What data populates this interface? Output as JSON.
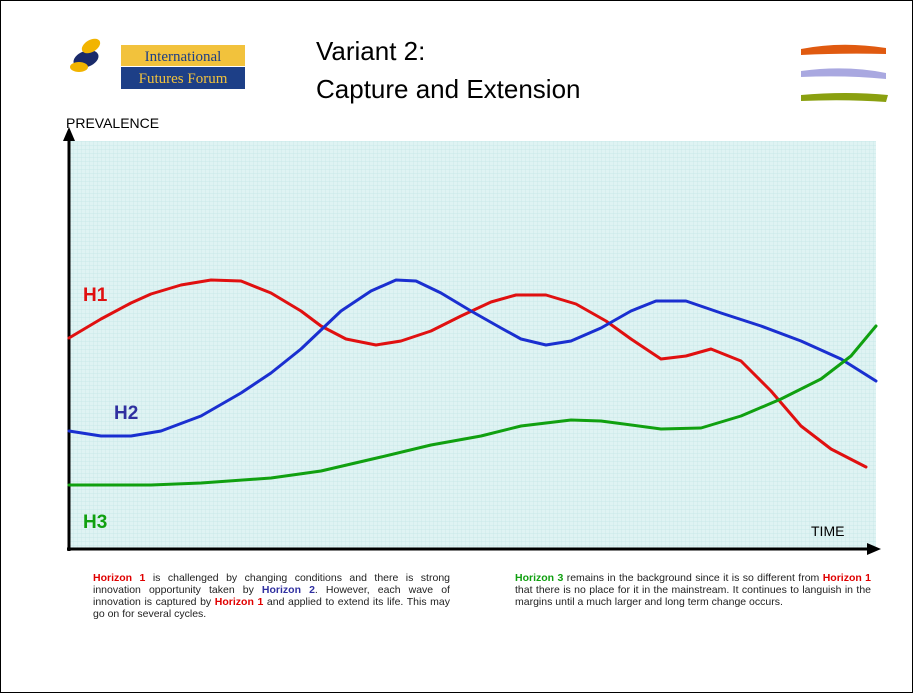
{
  "logo": {
    "line1": "International",
    "line2": "Futures Forum"
  },
  "title": {
    "line1": "Variant 2:",
    "line2": "Capture and Extension"
  },
  "axes": {
    "y_label": "PREVALENCE",
    "x_label": "TIME"
  },
  "curve_labels": {
    "h1": "H1",
    "h2": "H2",
    "h3": "H3"
  },
  "captions": [
    [
      "Horizon 1",
      " is challenged by changing conditions and there is strong innovation opportunity taken by ",
      "Horizon 2",
      ". However, each wave of innovation is captured by ",
      "Horizon 1",
      " and applied to extend its life. This may go on for several cycles."
    ],
    [
      "Horizon 3",
      " remains in the background since it is so different from ",
      "Horizon 1",
      " that there is no place for it in the mainstream. It continues to languish in the margins until a much larger and long term change occurs."
    ]
  ]
}
